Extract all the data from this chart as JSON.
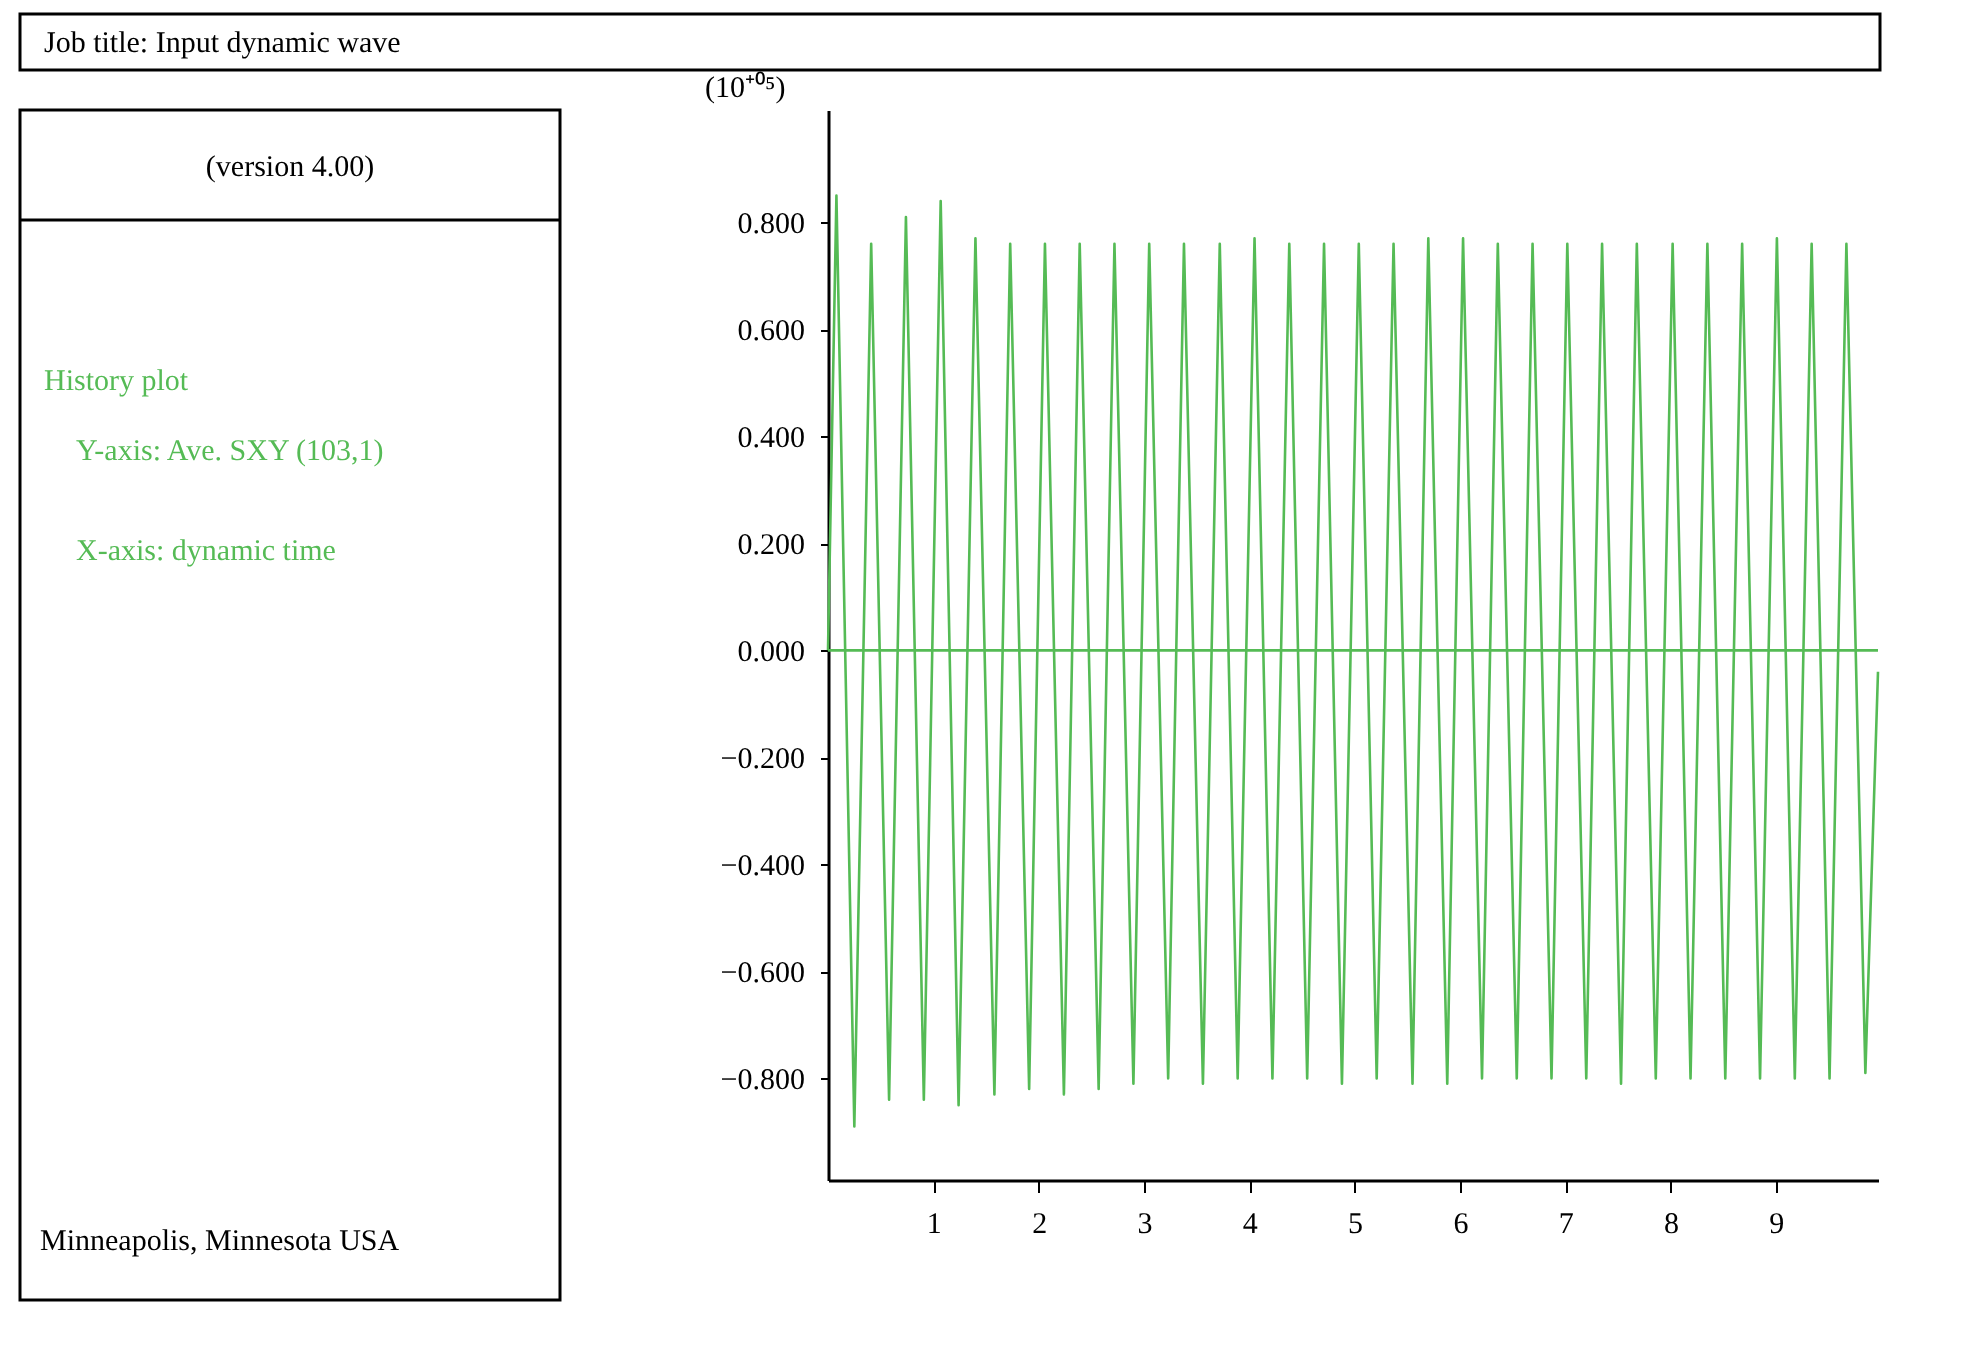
{
  "chart_data": {
    "type": "line",
    "title": "Job title: Input dynamic wave",
    "subtitle": "(version 4.00)",
    "ylabel": "(10⁺⁰⁵)",
    "annotations": [
      "History plot",
      "Y-axis: Ave. SXY (103,1)",
      "X-axis: dynamic time",
      "Minneapolis, Minnesota USA"
    ],
    "xlim": [
      0,
      9.97
    ],
    "xticks": [
      1,
      2,
      3,
      4,
      5,
      6,
      7,
      8,
      9
    ],
    "ylim": [
      -0.99,
      1.01
    ],
    "yticks": [
      {
        "value": -0.8,
        "label": "−0.800"
      },
      {
        "value": -0.6,
        "label": "−0.600"
      },
      {
        "value": -0.4,
        "label": "−0.400"
      },
      {
        "value": -0.2,
        "label": "−0.200"
      },
      {
        "value": 0,
        "label": "0.000"
      },
      {
        "value": 0.2,
        "label": "0.200"
      },
      {
        "value": 0.4,
        "label": "0.400"
      },
      {
        "value": 0.6,
        "label": "0.600"
      },
      {
        "value": 0.8,
        "label": "0.800"
      }
    ],
    "grid": false,
    "line_style": "solid",
    "ref_lines": [
      {
        "axis": "y",
        "value": 0,
        "color": "#55bb55"
      }
    ],
    "series": [
      {
        "color": "#55bb55",
        "x": [
          0,
          0.08,
          0.25,
          0.41,
          0.58,
          0.74,
          0.91,
          1.07,
          1.24,
          1.4,
          1.58,
          1.73,
          1.91,
          2.06,
          2.24,
          2.39,
          2.57,
          2.72,
          2.9,
          3.05,
          3.23,
          3.38,
          3.56,
          3.72,
          3.89,
          4.05,
          4.22,
          4.38,
          4.55,
          4.71,
          4.88,
          5.04,
          5.21,
          5.37,
          5.55,
          5.7,
          5.88,
          6.03,
          6.21,
          6.36,
          6.54,
          6.69,
          6.87,
          7.02,
          7.2,
          7.35,
          7.53,
          7.68,
          7.86,
          8.02,
          8.19,
          8.35,
          8.52,
          8.68,
          8.85,
          9.01,
          9.18,
          9.34,
          9.51,
          9.67,
          9.85,
          9.97
        ],
        "values": [
          0,
          0.85,
          -0.89,
          0.76,
          -0.84,
          0.81,
          -0.84,
          0.84,
          -0.85,
          0.77,
          -0.83,
          0.76,
          -0.82,
          0.76,
          -0.83,
          0.76,
          -0.82,
          0.76,
          -0.81,
          0.76,
          -0.8,
          0.76,
          -0.81,
          0.76,
          -0.8,
          0.77,
          -0.8,
          0.76,
          -0.8,
          0.76,
          -0.81,
          0.76,
          -0.8,
          0.76,
          -0.81,
          0.77,
          -0.81,
          0.77,
          -0.8,
          0.76,
          -0.8,
          0.76,
          -0.8,
          0.76,
          -0.8,
          0.76,
          -0.81,
          0.76,
          -0.8,
          0.76,
          -0.8,
          0.76,
          -0.8,
          0.76,
          -0.8,
          0.77,
          -0.8,
          0.76,
          -0.8,
          0.76,
          -0.79,
          -0.04
        ]
      }
    ]
  }
}
